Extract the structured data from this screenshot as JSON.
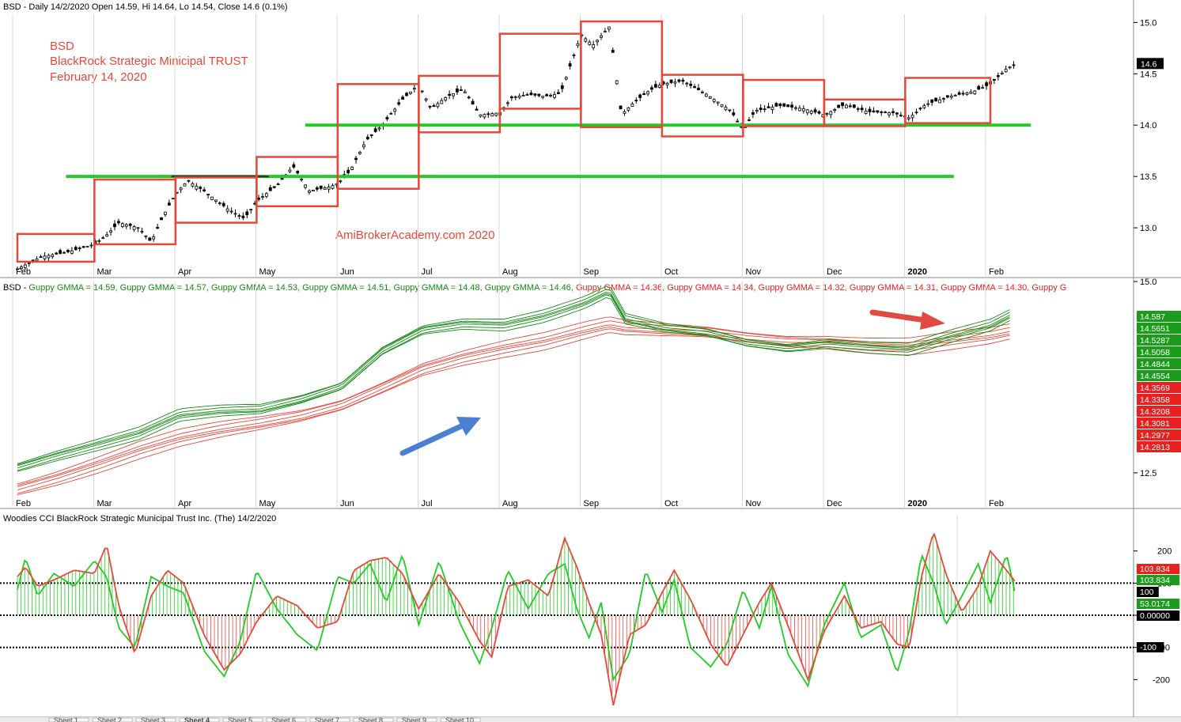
{
  "colors": {
    "red": "#e8483b",
    "green": "#22cc22",
    "darkgreen": "#138a13",
    "candle": "#000000",
    "panel_bg": "#ffffff",
    "divider": "#888888",
    "arrow_blue": "#4a7fd4",
    "arrow_red": "#e04a40",
    "badge_red": "#e82020",
    "badge_green": "#1c9c1c",
    "badge_black": "#000000"
  },
  "header": {
    "price_title": "BSD - Daily 14/2/2020 Open 14.59, Hi 14.64, Lo 14.54, Close 14.6 (0.1%)",
    "gmma_title_prefix": "BSD - ",
    "cci_title": "Woodies CCI  BlackRock Strategic Municipal Trust Inc. (The) 14/2/2020"
  },
  "annotations": {
    "ticker": "BSD",
    "name": "BlackRock Strategic Minicipal TRUST",
    "date": "February 14, 2020",
    "watermark": "AmiBrokerAcademy.com  2020"
  },
  "chart_data": [
    {
      "type": "candlestick",
      "panel": "price",
      "months": [
        "Feb",
        "Mar",
        "Apr",
        "May",
        "Jun",
        "Jul",
        "Aug",
        "Sep",
        "Oct",
        "Nov",
        "Dec",
        "2020",
        "Feb"
      ],
      "y_ticks": [
        13.0,
        13.5,
        14.0,
        14.5,
        15.0
      ],
      "ylim": [
        12.6,
        15.08
      ],
      "last_close_label": "14.6",
      "support_lines": [
        {
          "price": 13.5,
          "from_month": 0.6,
          "to_month": 11.55,
          "color": "green"
        },
        {
          "price": 14.0,
          "from_month": 3.55,
          "to_month": 12.5,
          "color": "green"
        },
        {
          "price": 13.5,
          "from_month": 1.9,
          "to_month": 3.1,
          "color": "black"
        }
      ],
      "boxes": [
        {
          "from_month": 0.0,
          "to_month": 0.95,
          "low": 12.67,
          "high": 12.94
        },
        {
          "from_month": 0.95,
          "to_month": 1.95,
          "low": 12.84,
          "high": 13.47
        },
        {
          "from_month": 1.95,
          "to_month": 2.95,
          "low": 13.05,
          "high": 13.49
        },
        {
          "from_month": 2.95,
          "to_month": 3.95,
          "low": 13.21,
          "high": 13.69
        },
        {
          "from_month": 3.95,
          "to_month": 4.95,
          "low": 13.38,
          "high": 14.4
        },
        {
          "from_month": 4.95,
          "to_month": 5.95,
          "low": 13.93,
          "high": 14.48
        },
        {
          "from_month": 5.95,
          "to_month": 6.95,
          "low": 14.16,
          "high": 14.89
        },
        {
          "from_month": 6.95,
          "to_month": 7.95,
          "low": 13.98,
          "high": 15.01
        },
        {
          "from_month": 7.95,
          "to_month": 8.95,
          "low": 13.89,
          "high": 14.49
        },
        {
          "from_month": 8.95,
          "to_month": 9.95,
          "low": 13.99,
          "high": 14.44
        },
        {
          "from_month": 9.95,
          "to_month": 10.95,
          "low": 13.99,
          "high": 14.25
        },
        {
          "from_month": 10.95,
          "to_month": 12.0,
          "low": 14.02,
          "high": 14.46
        }
      ],
      "price_path": [
        [
          0.0,
          12.6
        ],
        [
          0.3,
          12.72
        ],
        [
          0.6,
          12.76
        ],
        [
          0.95,
          12.84
        ],
        [
          1.1,
          12.93
        ],
        [
          1.25,
          13.05
        ],
        [
          1.5,
          13.0
        ],
        [
          1.65,
          12.86
        ],
        [
          1.8,
          13.12
        ],
        [
          1.95,
          13.33
        ],
        [
          2.1,
          13.46
        ],
        [
          2.3,
          13.36
        ],
        [
          2.6,
          13.18
        ],
        [
          2.8,
          13.09
        ],
        [
          2.95,
          13.26
        ],
        [
          3.2,
          13.41
        ],
        [
          3.4,
          13.6
        ],
        [
          3.6,
          13.36
        ],
        [
          3.85,
          13.4
        ],
        [
          3.95,
          13.43
        ],
        [
          4.1,
          13.55
        ],
        [
          4.3,
          13.85
        ],
        [
          4.5,
          14.0
        ],
        [
          4.75,
          14.25
        ],
        [
          4.95,
          14.4
        ],
        [
          5.1,
          14.16
        ],
        [
          5.3,
          14.28
        ],
        [
          5.5,
          14.35
        ],
        [
          5.7,
          14.1
        ],
        [
          5.95,
          14.12
        ],
        [
          6.1,
          14.27
        ],
        [
          6.3,
          14.3
        ],
        [
          6.5,
          14.28
        ],
        [
          6.7,
          14.31
        ],
        [
          6.95,
          14.88
        ],
        [
          7.1,
          14.78
        ],
        [
          7.3,
          14.96
        ],
        [
          7.45,
          14.1
        ],
        [
          7.6,
          14.22
        ],
        [
          7.8,
          14.34
        ],
        [
          7.95,
          14.4
        ],
        [
          8.2,
          14.43
        ],
        [
          8.5,
          14.3
        ],
        [
          8.8,
          14.14
        ],
        [
          8.95,
          13.95
        ],
        [
          9.1,
          14.14
        ],
        [
          9.4,
          14.19
        ],
        [
          9.7,
          14.16
        ],
        [
          9.95,
          14.1
        ],
        [
          10.2,
          14.2
        ],
        [
          10.5,
          14.13
        ],
        [
          10.8,
          14.12
        ],
        [
          11.0,
          14.07
        ],
        [
          11.2,
          14.2
        ],
        [
          11.5,
          14.28
        ],
        [
          11.8,
          14.33
        ],
        [
          12.0,
          14.4
        ],
        [
          12.2,
          14.55
        ],
        [
          12.32,
          14.6
        ]
      ]
    },
    {
      "type": "line",
      "panel": "gmma",
      "title_values": [
        {
          "name": "Guppy GMMA",
          "value": "14.59",
          "color": "green"
        },
        {
          "name": "Guppy GMMA",
          "value": "14.57",
          "color": "green"
        },
        {
          "name": "Guppy GMMA",
          "value": "14.53",
          "color": "green"
        },
        {
          "name": "Guppy GMMA",
          "value": "14.51",
          "color": "green"
        },
        {
          "name": "Guppy GMMA",
          "value": "14.48",
          "color": "green"
        },
        {
          "name": "Guppy GMMA",
          "value": "14.46",
          "color": "green"
        },
        {
          "name": "Guppy GMMA",
          "value": "14.36",
          "color": "red"
        },
        {
          "name": "Guppy GMMA",
          "value": "14.34",
          "color": "red"
        },
        {
          "name": "Guppy GMMA",
          "value": "14.32",
          "color": "red"
        },
        {
          "name": "Guppy GMMA",
          "value": "14.31",
          "color": "red"
        },
        {
          "name": "Guppy GMMA",
          "value": "14.30",
          "color": "red"
        },
        {
          "name": "Guppy G",
          "value": "",
          "color": "red"
        }
      ],
      "months": [
        "Feb",
        "Mar",
        "Apr",
        "May",
        "Jun",
        "Jul",
        "Aug",
        "Sep",
        "Oct",
        "Nov",
        "Dec",
        "2020",
        "Feb"
      ],
      "y_ticks": [
        12.5,
        15.0
      ],
      "ylim": [
        12.22,
        15.0
      ],
      "value_labels": [
        {
          "text": "14.587",
          "color": "green"
        },
        {
          "text": "14.5651",
          "color": "green"
        },
        {
          "text": "14.5287",
          "color": "green"
        },
        {
          "text": "14.5058",
          "color": "green"
        },
        {
          "text": "14.4844",
          "color": "green"
        },
        {
          "text": "14.4554",
          "color": "green"
        },
        {
          "text": "14.3569",
          "color": "red"
        },
        {
          "text": "14.3358",
          "color": "red"
        },
        {
          "text": "14.3208",
          "color": "red"
        },
        {
          "text": "14.3081",
          "color": "red"
        },
        {
          "text": "14.2977",
          "color": "red"
        },
        {
          "text": "14.2813",
          "color": "red"
        }
      ],
      "short_base": [
        [
          0.0,
          12.58
        ],
        [
          0.5,
          12.74
        ],
        [
          1.0,
          12.88
        ],
        [
          1.5,
          13.02
        ],
        [
          2.0,
          13.25
        ],
        [
          2.5,
          13.3
        ],
        [
          3.0,
          13.32
        ],
        [
          3.5,
          13.45
        ],
        [
          4.0,
          13.63
        ],
        [
          4.5,
          14.1
        ],
        [
          5.0,
          14.38
        ],
        [
          5.5,
          14.46
        ],
        [
          6.0,
          14.44
        ],
        [
          6.5,
          14.55
        ],
        [
          7.0,
          14.72
        ],
        [
          7.3,
          14.87
        ],
        [
          7.5,
          14.5
        ],
        [
          8.0,
          14.38
        ],
        [
          8.5,
          14.33
        ],
        [
          9.0,
          14.2
        ],
        [
          9.5,
          14.14
        ],
        [
          10.0,
          14.2
        ],
        [
          10.5,
          14.15
        ],
        [
          11.0,
          14.12
        ],
        [
          11.5,
          14.28
        ],
        [
          12.0,
          14.42
        ],
        [
          12.3,
          14.58
        ]
      ],
      "long_base": [
        [
          0.0,
          12.3
        ],
        [
          0.5,
          12.45
        ],
        [
          1.0,
          12.62
        ],
        [
          1.5,
          12.8
        ],
        [
          2.0,
          12.95
        ],
        [
          2.5,
          13.05
        ],
        [
          3.0,
          13.13
        ],
        [
          3.5,
          13.23
        ],
        [
          4.0,
          13.38
        ],
        [
          4.5,
          13.62
        ],
        [
          5.0,
          13.87
        ],
        [
          5.5,
          14.02
        ],
        [
          6.0,
          14.13
        ],
        [
          6.5,
          14.22
        ],
        [
          7.0,
          14.35
        ],
        [
          7.3,
          14.42
        ],
        [
          7.5,
          14.38
        ],
        [
          8.0,
          14.35
        ],
        [
          8.5,
          14.33
        ],
        [
          9.0,
          14.27
        ],
        [
          9.5,
          14.23
        ],
        [
          10.0,
          14.22
        ],
        [
          10.5,
          14.18
        ],
        [
          11.0,
          14.16
        ],
        [
          11.5,
          14.22
        ],
        [
          12.0,
          14.28
        ],
        [
          12.3,
          14.34
        ]
      ]
    },
    {
      "type": "line",
      "panel": "cci",
      "y_ticks": [
        200,
        100,
        0,
        -100,
        -200
      ],
      "ylim": [
        -300,
        310
      ],
      "value_labels": [
        {
          "text": "103.834",
          "color": "red"
        },
        {
          "text": "103.834",
          "color": "green"
        },
        {
          "text": "100",
          "color": "black"
        },
        {
          "text": "53.0174",
          "color": "green"
        },
        {
          "text": "0.00000",
          "color": "black"
        },
        {
          "text": "-100",
          "color": "black"
        }
      ],
      "cci_red": [
        [
          0.0,
          120
        ],
        [
          0.1,
          150
        ],
        [
          0.25,
          90
        ],
        [
          0.45,
          110
        ],
        [
          0.7,
          140
        ],
        [
          0.95,
          130
        ],
        [
          1.1,
          220
        ],
        [
          1.25,
          30
        ],
        [
          1.45,
          -120
        ],
        [
          1.65,
          60
        ],
        [
          1.85,
          140
        ],
        [
          2.05,
          100
        ],
        [
          2.3,
          -60
        ],
        [
          2.55,
          -170
        ],
        [
          2.75,
          -120
        ],
        [
          2.95,
          -20
        ],
        [
          3.2,
          60
        ],
        [
          3.45,
          30
        ],
        [
          3.7,
          -40
        ],
        [
          3.95,
          -20
        ],
        [
          4.15,
          140
        ],
        [
          4.35,
          170
        ],
        [
          4.55,
          180
        ],
        [
          4.75,
          130
        ],
        [
          4.95,
          20
        ],
        [
          5.2,
          130
        ],
        [
          5.45,
          40
        ],
        [
          5.7,
          -80
        ],
        [
          5.85,
          -130
        ],
        [
          6.05,
          90
        ],
        [
          6.3,
          110
        ],
        [
          6.55,
          60
        ],
        [
          6.75,
          240
        ],
        [
          6.9,
          150
        ],
        [
          7.05,
          40
        ],
        [
          7.2,
          -60
        ],
        [
          7.35,
          -280
        ],
        [
          7.55,
          -60
        ],
        [
          7.75,
          -30
        ],
        [
          7.95,
          70
        ],
        [
          8.1,
          140
        ],
        [
          8.3,
          50
        ],
        [
          8.55,
          -90
        ],
        [
          8.75,
          -160
        ],
        [
          8.95,
          -60
        ],
        [
          9.15,
          40
        ],
        [
          9.3,
          100
        ],
        [
          9.5,
          -30
        ],
        [
          9.75,
          -200
        ],
        [
          9.95,
          -50
        ],
        [
          10.2,
          60
        ],
        [
          10.4,
          -40
        ],
        [
          10.65,
          -20
        ],
        [
          10.85,
          -90
        ],
        [
          11.0,
          -100
        ],
        [
          11.15,
          120
        ],
        [
          11.3,
          260
        ],
        [
          11.45,
          130
        ],
        [
          11.65,
          10
        ],
        [
          11.85,
          90
        ],
        [
          12.0,
          200
        ],
        [
          12.2,
          140
        ],
        [
          12.32,
          100
        ]
      ],
      "cci_green": [
        [
          0.0,
          80
        ],
        [
          0.1,
          180
        ],
        [
          0.25,
          60
        ],
        [
          0.45,
          130
        ],
        [
          0.7,
          90
        ],
        [
          0.95,
          170
        ],
        [
          1.1,
          120
        ],
        [
          1.25,
          -40
        ],
        [
          1.45,
          -100
        ],
        [
          1.65,
          120
        ],
        [
          1.85,
          90
        ],
        [
          2.05,
          70
        ],
        [
          2.3,
          -110
        ],
        [
          2.55,
          -190
        ],
        [
          2.75,
          -80
        ],
        [
          2.95,
          140
        ],
        [
          3.2,
          20
        ],
        [
          3.45,
          -60
        ],
        [
          3.7,
          -110
        ],
        [
          3.95,
          120
        ],
        [
          4.15,
          100
        ],
        [
          4.35,
          160
        ],
        [
          4.55,
          40
        ],
        [
          4.75,
          190
        ],
        [
          4.95,
          -30
        ],
        [
          5.2,
          170
        ],
        [
          5.45,
          -20
        ],
        [
          5.7,
          -150
        ],
        [
          5.85,
          -40
        ],
        [
          6.05,
          140
        ],
        [
          6.3,
          20
        ],
        [
          6.55,
          130
        ],
        [
          6.75,
          160
        ],
        [
          6.9,
          20
        ],
        [
          7.05,
          -70
        ],
        [
          7.2,
          40
        ],
        [
          7.35,
          -200
        ],
        [
          7.55,
          -120
        ],
        [
          7.75,
          140
        ],
        [
          7.95,
          10
        ],
        [
          8.1,
          110
        ],
        [
          8.3,
          -100
        ],
        [
          8.55,
          -160
        ],
        [
          8.75,
          -90
        ],
        [
          8.95,
          80
        ],
        [
          9.15,
          -40
        ],
        [
          9.3,
          90
        ],
        [
          9.5,
          -120
        ],
        [
          9.75,
          -220
        ],
        [
          9.95,
          -30
        ],
        [
          10.2,
          100
        ],
        [
          10.4,
          -70
        ],
        [
          10.65,
          -30
        ],
        [
          10.85,
          -180
        ],
        [
          11.0,
          -50
        ],
        [
          11.15,
          190
        ],
        [
          11.3,
          100
        ],
        [
          11.45,
          -30
        ],
        [
          11.65,
          60
        ],
        [
          11.85,
          160
        ],
        [
          12.0,
          40
        ],
        [
          12.2,
          190
        ],
        [
          12.32,
          53
        ]
      ]
    }
  ],
  "sheet_tabs": [
    "Sheet 1",
    "Sheet 2",
    "Sheet 3",
    "Sheet 4",
    "Sheet 5",
    "Sheet 6",
    "Sheet 7",
    "Sheet 8",
    "Sheet 9",
    "Sheet 10"
  ]
}
